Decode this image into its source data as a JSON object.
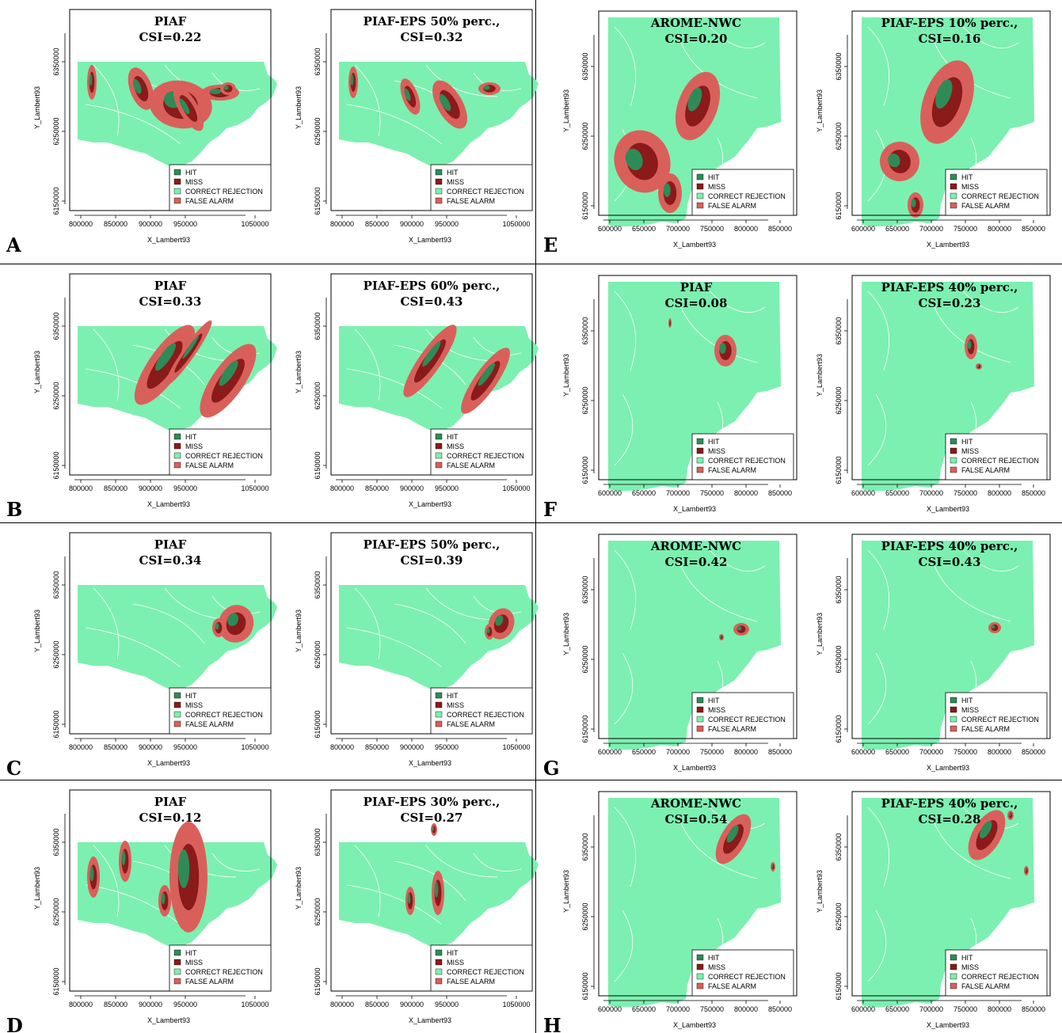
{
  "colors": {
    "hit": "#2e8b57",
    "miss": "#8b1a1a",
    "correct_rejection": "#7cf0b0",
    "false_alarm": "#d9605a",
    "rivers": "#ffffff",
    "frame": "#000000"
  },
  "legend": [
    "HIT",
    "MISS",
    "CORRECT REJECTION",
    "FALSE ALARM"
  ],
  "axis_labels": {
    "x": "X_Lambert93",
    "y": "Y_Lambert93"
  },
  "ticks": {
    "west_x": [
      "800000",
      "850000",
      "900000",
      "950000",
      "1050000"
    ],
    "west_y": [
      "6150000",
      "6250000",
      "6350000"
    ],
    "south_x": [
      "600000",
      "650000",
      "700000",
      "750000",
      "800000",
      "850000"
    ],
    "south_y": [
      "6150000",
      "6250000",
      "6350000"
    ]
  },
  "rows": [
    {
      "label": "A",
      "panels": [
        {
          "title": "PIAF",
          "csi": "CSI=0.22"
        },
        {
          "title": "PIAF-EPS  50% perc.,",
          "csi": "CSI=0.32"
        }
      ]
    },
    {
      "label": "B",
      "panels": [
        {
          "title": "PIAF",
          "csi": "CSI=0.33"
        },
        {
          "title": "PIAF-EPS  60% perc.,",
          "csi": "CSI=0.43"
        }
      ]
    },
    {
      "label": "C",
      "panels": [
        {
          "title": "PIAF",
          "csi": "CSI=0.34"
        },
        {
          "title": "PIAF-EPS  50% perc.,",
          "csi": "CSI=0.39"
        }
      ]
    },
    {
      "label": "D",
      "panels": [
        {
          "title": "PIAF",
          "csi": "CSI=0.12"
        },
        {
          "title": "PIAF-EPS  30% perc.,",
          "csi": "CSI=0.27"
        }
      ]
    },
    {
      "label": "E",
      "panels": [
        {
          "title": "AROME-NWC",
          "csi": "CSI=0.20"
        },
        {
          "title": "PIAF-EPS  10% perc.,",
          "csi": "CSI=0.16"
        }
      ]
    },
    {
      "label": "F",
      "panels": [
        {
          "title": "PIAF",
          "csi": "CSI=0.08"
        },
        {
          "title": "PIAF-EPS  40% perc.,",
          "csi": "CSI=0.23"
        }
      ]
    },
    {
      "label": "G",
      "panels": [
        {
          "title": "AROME-NWC",
          "csi": "CSI=0.42"
        },
        {
          "title": "PIAF-EPS  40% perc.,",
          "csi": "CSI=0.43"
        }
      ]
    },
    {
      "label": "H",
      "panels": [
        {
          "title": "AROME-NWC",
          "csi": "CSI=0.54"
        },
        {
          "title": "PIAF-EPS  40% perc.,",
          "csi": "CSI=0.28"
        }
      ]
    }
  ]
}
